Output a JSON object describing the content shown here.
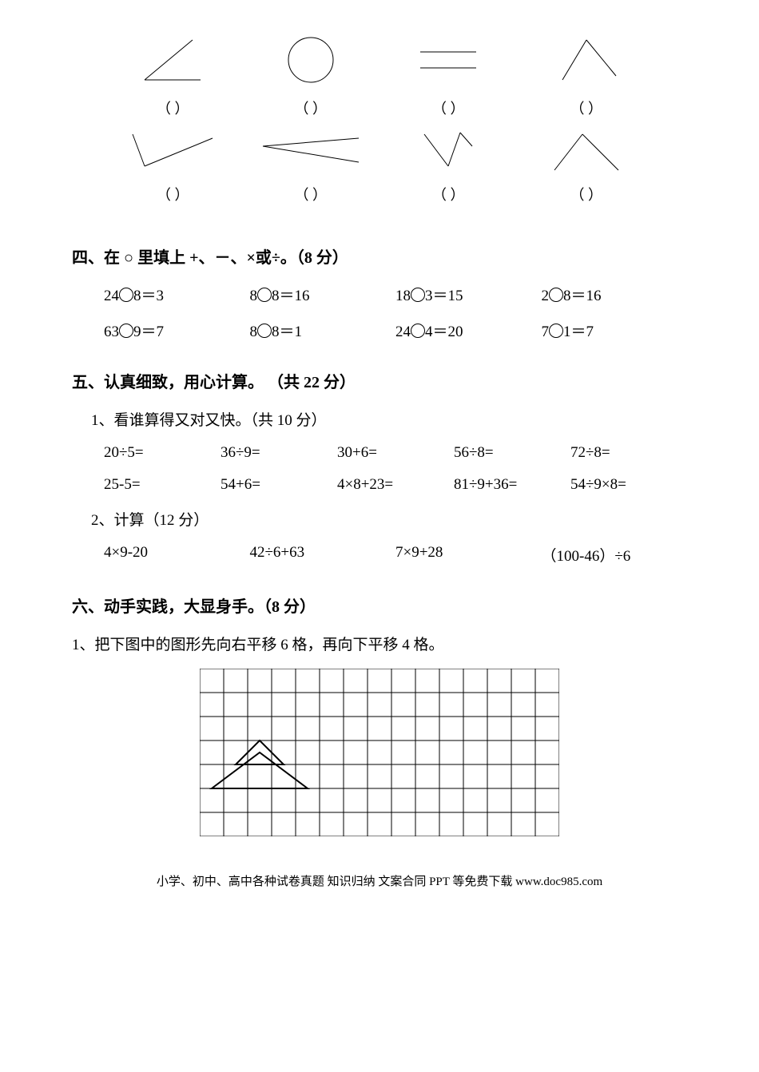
{
  "shapes_section": {
    "row1": [
      {
        "svg": "angle",
        "label": "（    ）"
      },
      {
        "svg": "circle",
        "label": "（    ）"
      },
      {
        "svg": "parallel",
        "label": "（    ）"
      },
      {
        "svg": "open_angle",
        "label": "（    ）"
      }
    ],
    "row2": [
      {
        "svg": "v_angle",
        "label": "（    ）"
      },
      {
        "svg": "narrow_angle",
        "label": "（    ）"
      },
      {
        "svg": "v_down",
        "label": "（    ）"
      },
      {
        "svg": "wide_angle",
        "label": "（    ）"
      }
    ]
  },
  "section4": {
    "title": "四、在 ○ 里填上 +、－、×或÷。（8 分）",
    "rows": [
      [
        {
          "left": "24",
          "right": "8＝3"
        },
        {
          "left": "8",
          "right": "8＝16"
        },
        {
          "left": "18",
          "right": "3＝15"
        },
        {
          "left": "2",
          "right": "8＝16"
        }
      ],
      [
        {
          "left": "63",
          "right": "9＝7"
        },
        {
          "left": "8",
          "right": "8＝1"
        },
        {
          "left": "24",
          "right": "4＝20"
        },
        {
          "left": "7",
          "right": "1＝7"
        }
      ]
    ]
  },
  "section5": {
    "title": "五、认真细致，用心计算。 （共 22 分）",
    "part1": {
      "title": "1、看谁算得又对又快。（共 10 分）",
      "rows": [
        [
          "20÷5=",
          "36÷9=",
          "30+6=",
          "56÷8=",
          "72÷8="
        ],
        [
          "25-5=",
          "54+6=",
          "4×8+23=",
          "81÷9+36=",
          "54÷9×8="
        ]
      ]
    },
    "part2": {
      "title": "2、计算（12 分）",
      "rows": [
        [
          "4×9-20",
          "42÷6+63",
          "7×9+28",
          "（100-46）÷6"
        ]
      ]
    }
  },
  "section6": {
    "title": "六、动手实践，大显身手。（8 分）",
    "instruction": "1、把下图中的图形先向右平移 6 格，再向下平移 4 格。",
    "grid": {
      "cols": 15,
      "rows": 7,
      "cell_size": 30,
      "stroke": "#000000"
    }
  },
  "footer": "小学、初中、高中各种试卷真题  知识归纳  文案合同  PPT 等免费下载    www.doc985.com"
}
